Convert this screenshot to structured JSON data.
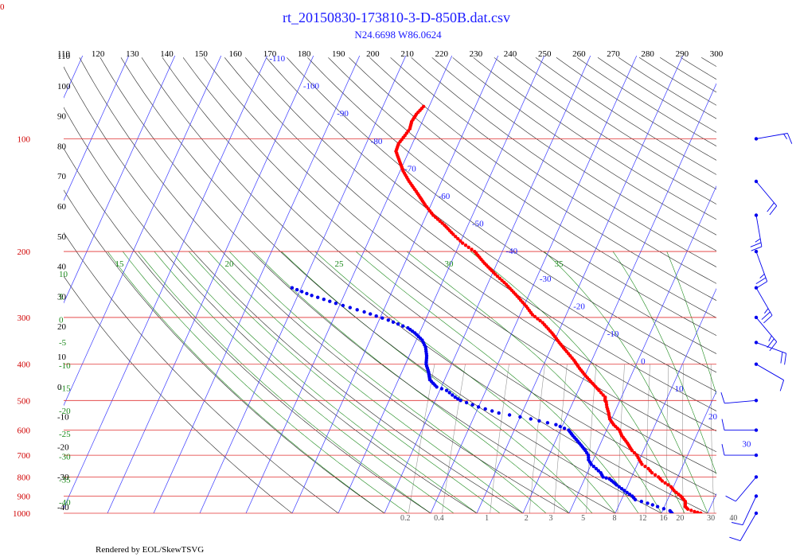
{
  "corner_label": "0",
  "footer": "Rendered by EOL/SkewTSVG",
  "colors": {
    "title": "#1a1aff",
    "isobar": "#e03030",
    "isotherm": "#3a3aff",
    "dry_adiabat": "#222222",
    "moist_adiabat": "#1c8a1c",
    "mixing_ratio": "#999999",
    "temperature": "#ff0000",
    "dewpoint": "#0000ee",
    "wind": "#0000ee"
  },
  "chart_data": {
    "type": "scatter",
    "title": "rt_20150830-173810-3-D-850B.dat.csv",
    "subtitle": "N24.6698 W86.0624",
    "pressure_range_hpa": [
      1000,
      60
    ],
    "y_scale": "log",
    "pressure_labels": [
      "100",
      "200",
      "300",
      "400",
      "500",
      "600",
      "700",
      "800",
      "900",
      "1000"
    ],
    "top_labels": [
      "110",
      "120",
      "130",
      "140",
      "150",
      "160",
      "170",
      "180",
      "190",
      "200",
      "210",
      "220",
      "230",
      "240",
      "250",
      "260",
      "270",
      "280",
      "290",
      "300"
    ],
    "isotherm_labels": [
      "-110",
      "-100",
      "-90",
      "-80",
      "-70",
      "-60",
      "-50",
      "-40",
      "-30",
      "-20",
      "-10",
      "0",
      "10",
      "20",
      "30"
    ],
    "dry_adiabat_left_labels": [
      "110",
      "100",
      "90",
      "80",
      "70",
      "60",
      "50",
      "40",
      "30",
      "20",
      "10",
      "0",
      "-10",
      "-20",
      "-30",
      "-40"
    ],
    "moist_adiabat_labels": [
      "15",
      "20",
      "25",
      "30",
      "35"
    ],
    "moist_left_labels": [
      "10",
      "5",
      "0",
      "-5",
      "-10",
      "-15",
      "-20",
      "-25",
      "-30",
      "-35",
      "-40"
    ],
    "mixing_ratio_labels": [
      "0.2",
      "0.4",
      "1",
      "2",
      "3",
      "5",
      "8",
      "12",
      "16",
      "20",
      "30",
      "40"
    ],
    "temperature_profile": {
      "name": "",
      "points": [
        {
          "p": 1000,
          "t": 28.5
        },
        {
          "p": 990,
          "t": 27.0
        },
        {
          "p": 975,
          "t": 25.3
        },
        {
          "p": 960,
          "t": 24.5
        },
        {
          "p": 930,
          "t": 24.0
        },
        {
          "p": 900,
          "t": 22.5
        },
        {
          "p": 870,
          "t": 20.5
        },
        {
          "p": 850,
          "t": 19.5
        },
        {
          "p": 820,
          "t": 17.0
        },
        {
          "p": 800,
          "t": 15.8
        },
        {
          "p": 780,
          "t": 14.0
        },
        {
          "p": 760,
          "t": 12.8
        },
        {
          "p": 740,
          "t": 11.0
        },
        {
          "p": 720,
          "t": 10.0
        },
        {
          "p": 700,
          "t": 9.0
        },
        {
          "p": 680,
          "t": 7.5
        },
        {
          "p": 650,
          "t": 5.8
        },
        {
          "p": 620,
          "t": 3.8
        },
        {
          "p": 600,
          "t": 2.8
        },
        {
          "p": 580,
          "t": 1.0
        },
        {
          "p": 560,
          "t": -0.4
        },
        {
          "p": 540,
          "t": -1.2
        },
        {
          "p": 520,
          "t": -2.2
        },
        {
          "p": 505,
          "t": -2.8
        },
        {
          "p": 500,
          "t": -3.2
        },
        {
          "p": 490,
          "t": -3.5
        },
        {
          "p": 470,
          "t": -5.5
        },
        {
          "p": 450,
          "t": -7.6
        },
        {
          "p": 430,
          "t": -9.8
        },
        {
          "p": 410,
          "t": -11.9
        },
        {
          "p": 390,
          "t": -13.9
        },
        {
          "p": 370,
          "t": -16.3
        },
        {
          "p": 350,
          "t": -18.8
        },
        {
          "p": 330,
          "t": -21.3
        },
        {
          "p": 310,
          "t": -24.3
        },
        {
          "p": 295,
          "t": -27.3
        },
        {
          "p": 280,
          "t": -29.5
        },
        {
          "p": 260,
          "t": -33.0
        },
        {
          "p": 245,
          "t": -35.9
        },
        {
          "p": 230,
          "t": -39.3
        },
        {
          "p": 215,
          "t": -42.7
        },
        {
          "p": 200,
          "t": -46.0
        },
        {
          "p": 190,
          "t": -49.4
        },
        {
          "p": 180,
          "t": -52.3
        },
        {
          "p": 170,
          "t": -55.1
        },
        {
          "p": 160,
          "t": -58.5
        },
        {
          "p": 150,
          "t": -61.3
        },
        {
          "p": 140,
          "t": -64.0
        },
        {
          "p": 130,
          "t": -67.0
        },
        {
          "p": 122,
          "t": -69.3
        },
        {
          "p": 115,
          "t": -71.0
        },
        {
          "p": 108,
          "t": -72.8
        },
        {
          "p": 103,
          "t": -73.0
        },
        {
          "p": 98,
          "t": -72.4
        },
        {
          "p": 94,
          "t": -72.0
        },
        {
          "p": 90,
          "t": -72.3
        },
        {
          "p": 86,
          "t": -72.0
        },
        {
          "p": 82,
          "t": -71.2
        }
      ]
    },
    "dewpoint_profile": {
      "name": "",
      "points": [
        {
          "p": 1000,
          "t": 22.3
        },
        {
          "p": 985,
          "t": 21.6
        },
        {
          "p": 960,
          "t": 18.5
        },
        {
          "p": 940,
          "t": 16.0
        },
        {
          "p": 920,
          "t": 13.0
        },
        {
          "p": 900,
          "t": 12.0
        },
        {
          "p": 880,
          "t": 10.5
        },
        {
          "p": 860,
          "t": 9.0
        },
        {
          "p": 840,
          "t": 7.5
        },
        {
          "p": 825,
          "t": 6.5
        },
        {
          "p": 810,
          "t": 5.4
        },
        {
          "p": 800,
          "t": 3.8
        },
        {
          "p": 780,
          "t": 2.9
        },
        {
          "p": 760,
          "t": 1.5
        },
        {
          "p": 740,
          "t": 0.0
        },
        {
          "p": 720,
          "t": -1.0
        },
        {
          "p": 700,
          "t": -1.5
        },
        {
          "p": 680,
          "t": -2.6
        },
        {
          "p": 650,
          "t": -4.6
        },
        {
          "p": 620,
          "t": -6.8
        },
        {
          "p": 600,
          "t": -8.2
        },
        {
          "p": 580,
          "t": -11.5
        },
        {
          "p": 560,
          "t": -17.5
        },
        {
          "p": 540,
          "t": -25.0
        },
        {
          "p": 520,
          "t": -30.0
        },
        {
          "p": 500,
          "t": -34.5
        },
        {
          "p": 490,
          "t": -36.0
        },
        {
          "p": 470,
          "t": -38.5
        },
        {
          "p": 460,
          "t": -41.0
        },
        {
          "p": 440,
          "t": -43.2
        },
        {
          "p": 420,
          "t": -44.2
        },
        {
          "p": 400,
          "t": -45.5
        },
        {
          "p": 380,
          "t": -46.2
        },
        {
          "p": 360,
          "t": -47.3
        },
        {
          "p": 345,
          "t": -48.7
        },
        {
          "p": 330,
          "t": -51.0
        },
        {
          "p": 320,
          "t": -53.0
        },
        {
          "p": 305,
          "t": -58.0
        },
        {
          "p": 290,
          "t": -64.0
        },
        {
          "p": 275,
          "t": -71.0
        },
        {
          "p": 262,
          "t": -77.0
        },
        {
          "p": 250,
          "t": -82.0
        }
      ]
    },
    "wind_barbs": [
      {
        "p": 1000,
        "dir": 210,
        "speed": 10
      },
      {
        "p": 900,
        "dir": 205,
        "speed": 10
      },
      {
        "p": 800,
        "dir": 220,
        "speed": 10
      },
      {
        "p": 700,
        "dir": 270,
        "speed": 10
      },
      {
        "p": 600,
        "dir": 270,
        "speed": 10
      },
      {
        "p": 500,
        "dir": 265,
        "speed": 10
      },
      {
        "p": 400,
        "dir": 120,
        "speed": 10
      },
      {
        "p": 350,
        "dir": 110,
        "speed": 20
      },
      {
        "p": 300,
        "dir": 140,
        "speed": 25
      },
      {
        "p": 250,
        "dir": 150,
        "speed": 25
      },
      {
        "p": 200,
        "dir": 160,
        "speed": 25
      },
      {
        "p": 160,
        "dir": 170,
        "speed": 25
      },
      {
        "p": 130,
        "dir": 140,
        "speed": 20
      },
      {
        "p": 100,
        "dir": 80,
        "speed": 15
      }
    ],
    "grid": true,
    "legend": "none"
  }
}
